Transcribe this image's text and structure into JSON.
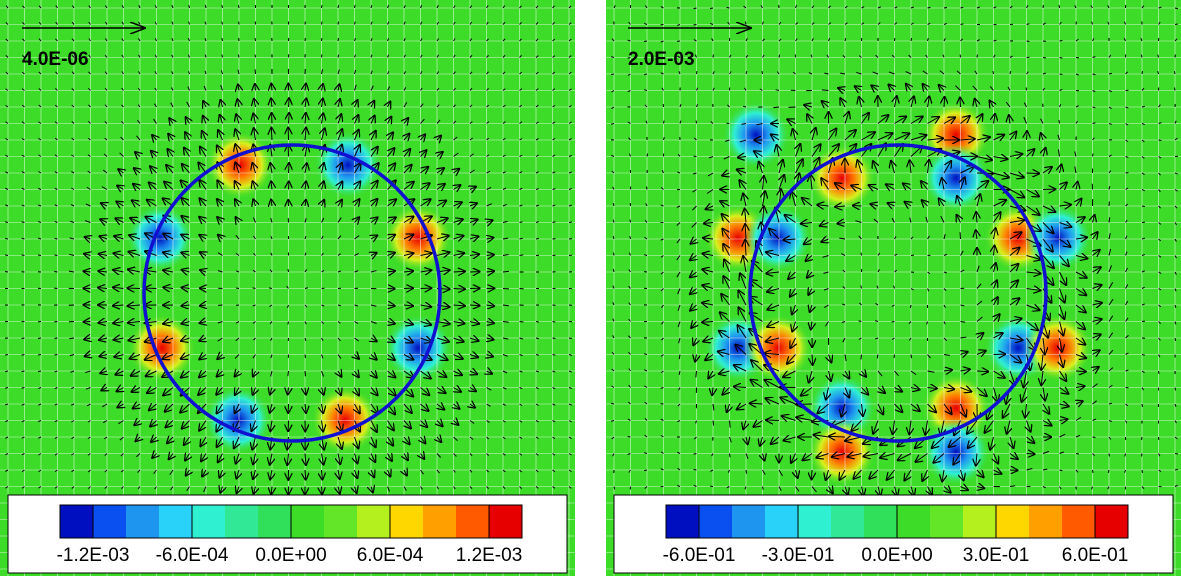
{
  "chart_data": [
    {
      "type": "contour",
      "annotation": "4.0E-06",
      "clim": [
        -0.0014,
        0.0014
      ],
      "colorbar_colors": [
        "#0010c0",
        "#0a50f0",
        "#1e96f0",
        "#28d2f8",
        "#30f0d2",
        "#30e896",
        "#30e05a",
        "#3cdc28",
        "#64e628",
        "#b4f01e",
        "#ffd700",
        "#ffa000",
        "#ff5a00",
        "#e60000"
      ],
      "cticks": [
        {
          "value": -0.0012,
          "label": "-1.2E-03"
        },
        {
          "value": -0.0006,
          "label": "-6.0E-04"
        },
        {
          "value": 0,
          "label": "0.0E+00"
        },
        {
          "value": 0.0006,
          "label": "6.0E-04"
        },
        {
          "value": 0.0012,
          "label": "1.2E-03"
        }
      ]
    },
    {
      "type": "contour",
      "annotation": "2.0E-03",
      "clim": [
        -0.7,
        0.7
      ],
      "colorbar_colors": [
        "#0010c0",
        "#0a50f0",
        "#1e96f0",
        "#28d2f8",
        "#30f0d2",
        "#30e896",
        "#30e05a",
        "#3cdc28",
        "#64e628",
        "#b4f01e",
        "#ffd700",
        "#ffa000",
        "#ff5a00",
        "#e60000"
      ],
      "cticks": [
        {
          "value": -0.6,
          "label": "-6.0E-01"
        },
        {
          "value": -0.3,
          "label": "-3.0E-01"
        },
        {
          "value": 0,
          "label": "0.0E+00"
        },
        {
          "value": 0.3,
          "label": "3.0E-01"
        },
        {
          "value": 0.6,
          "label": "6.0E-01"
        }
      ]
    }
  ]
}
